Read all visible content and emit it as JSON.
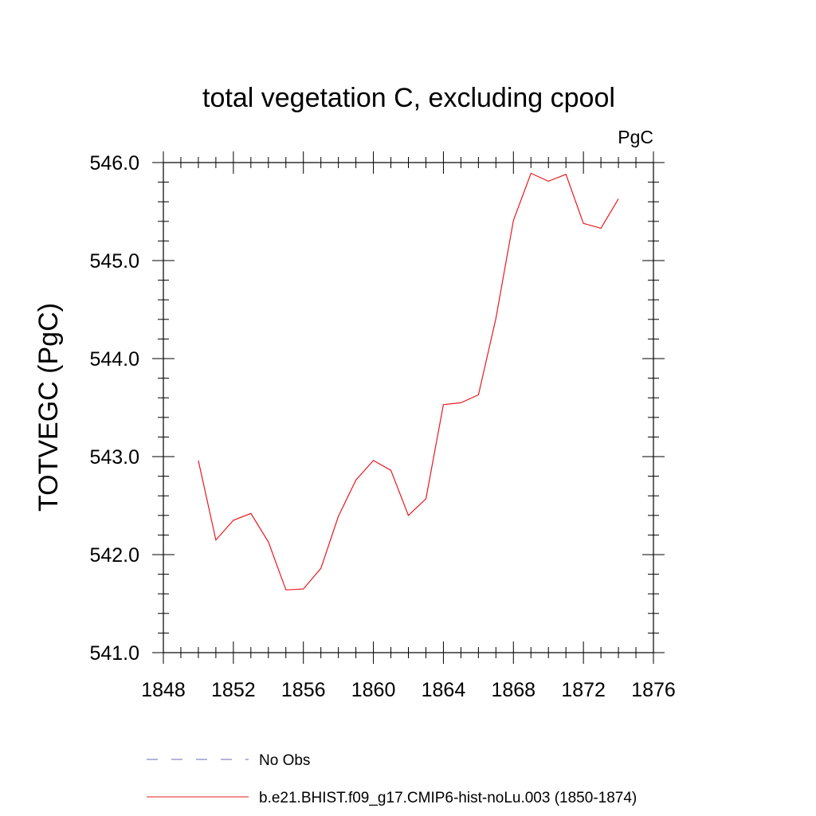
{
  "chart_data": {
    "type": "line",
    "title": "total vegetation C, excluding cpool",
    "units_label": "PgC",
    "ylabel": "TOTVEGC  (PgC)",
    "xlabel": "",
    "xlim": [
      1848,
      1876
    ],
    "ylim": [
      541.0,
      546.0
    ],
    "x_ticks": [
      1848,
      1852,
      1856,
      1860,
      1864,
      1868,
      1872,
      1876
    ],
    "x_tick_labels": [
      "1848",
      "1852",
      "1856",
      "1860",
      "1864",
      "1868",
      "1872",
      "1876"
    ],
    "y_ticks": [
      541.0,
      542.0,
      543.0,
      544.0,
      545.0,
      546.0
    ],
    "y_tick_labels": [
      "541.0",
      "542.0",
      "543.0",
      "544.0",
      "545.0",
      "546.0"
    ],
    "grid": false,
    "legend_placement": "bottom",
    "series": [
      {
        "name": "No Obs",
        "style": "dashed",
        "color": "#6a6ab8",
        "x": [],
        "values": []
      },
      {
        "name": "b.e21.BHIST.f09_g17.CMIP6-hist-noLu.003 (1850-1874)",
        "style": "solid",
        "color": "#e8191e",
        "x": [
          1850,
          1851,
          1852,
          1853,
          1854,
          1855,
          1856,
          1857,
          1858,
          1859,
          1860,
          1861,
          1862,
          1863,
          1864,
          1865,
          1866,
          1867,
          1868,
          1869,
          1870,
          1871,
          1872,
          1873,
          1874
        ],
        "values": [
          542.96,
          542.15,
          542.35,
          542.42,
          542.13,
          541.64,
          541.65,
          541.86,
          542.39,
          542.76,
          542.96,
          542.86,
          542.4,
          542.57,
          543.53,
          543.55,
          543.63,
          544.41,
          545.41,
          545.89,
          545.81,
          545.88,
          545.38,
          545.33,
          545.63
        ]
      }
    ]
  }
}
